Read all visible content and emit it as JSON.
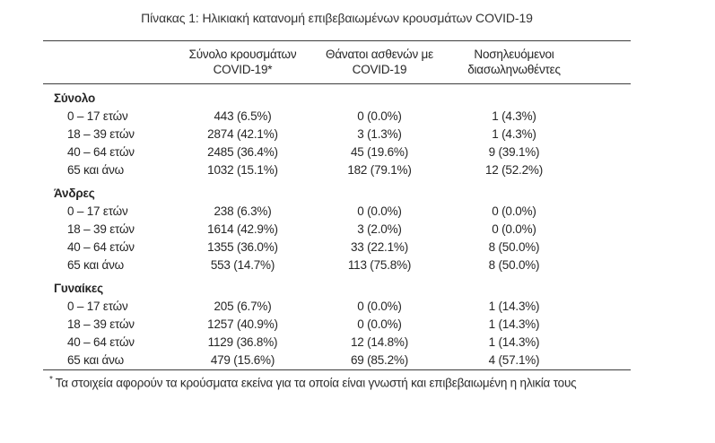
{
  "title": "Πίνακας 1: Ηλικιακή κατανομή επιβεβαιωμένων κρουσμάτων COVID-19",
  "table": {
    "columns": [
      {
        "line1": "Σύνολο κρουσμάτων",
        "line2": "COVID-19*"
      },
      {
        "line1": "Θάνατοι ασθενών με",
        "line2": "COVID-19"
      },
      {
        "line1": "Νοσηλευόμενοι",
        "line2": "διασωληνωθέντες"
      }
    ],
    "sections": [
      {
        "label": "Σύνολο",
        "rows": [
          {
            "age": "0 – 17 ετών",
            "cases": "443 (6.5%)",
            "deaths": "0 (0.0%)",
            "intubated": "1 (4.3%)"
          },
          {
            "age": "18 – 39 ετών",
            "cases": "2874 (42.1%)",
            "deaths": "3 (1.3%)",
            "intubated": "1 (4.3%)"
          },
          {
            "age": "40 – 64 ετών",
            "cases": "2485 (36.4%)",
            "deaths": "45 (19.6%)",
            "intubated": "9 (39.1%)"
          },
          {
            "age": "65 και άνω",
            "cases": "1032 (15.1%)",
            "deaths": "182 (79.1%)",
            "intubated": "12 (52.2%)"
          }
        ]
      },
      {
        "label": "Άνδρες",
        "rows": [
          {
            "age": "0 – 17 ετών",
            "cases": "238 (6.3%)",
            "deaths": "0 (0.0%)",
            "intubated": "0 (0.0%)"
          },
          {
            "age": "18 – 39 ετών",
            "cases": "1614 (42.9%)",
            "deaths": "3 (2.0%)",
            "intubated": "0 (0.0%)"
          },
          {
            "age": "40 – 64 ετών",
            "cases": "1355 (36.0%)",
            "deaths": "33 (22.1%)",
            "intubated": "8 (50.0%)"
          },
          {
            "age": "65 και άνω",
            "cases": "553 (14.7%)",
            "deaths": "113 (75.8%)",
            "intubated": "8 (50.0%)"
          }
        ]
      },
      {
        "label": "Γυναίκες",
        "rows": [
          {
            "age": "0 – 17 ετών",
            "cases": "205 (6.7%)",
            "deaths": "0 (0.0%)",
            "intubated": "1 (14.3%)"
          },
          {
            "age": "18 – 39 ετών",
            "cases": "1257 (40.9%)",
            "deaths": "0 (0.0%)",
            "intubated": "1 (14.3%)"
          },
          {
            "age": "40 – 64 ετών",
            "cases": "1129 (36.8%)",
            "deaths": "12 (14.8%)",
            "intubated": "1 (14.3%)"
          },
          {
            "age": "65 και άνω",
            "cases": "479 (15.6%)",
            "deaths": "69 (85.2%)",
            "intubated": "4 (57.1%)"
          }
        ]
      }
    ],
    "footnote_marker": "*",
    "footnote": "Τα στοιχεία αφορούν τα κρούσματα εκείνα για τα οποία είναι γνωστή και επιβεβαιωμένη η ηλικία τους"
  }
}
